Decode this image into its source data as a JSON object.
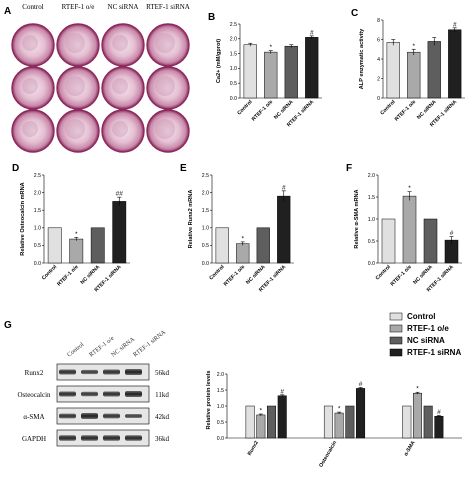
{
  "panel_a": {
    "letter": "A",
    "columns": [
      "Control",
      "RTEF-1 o/e",
      "NC siRNA",
      "RTEF-1 siRNA"
    ],
    "dish_rows": 3,
    "dish_color": "#8b2a5c"
  },
  "colors": {
    "Control": "#e0e0e0",
    "RTEF-1 o/e": "#a9a9a9",
    "NC siRNA": "#5e5e5e",
    "RTEF-1 siRNA": "#202020"
  },
  "chart_data": [
    {
      "panel": "B",
      "type": "bar",
      "categories": [
        "Control",
        "RTEF-1 o/e",
        "NC siRNA",
        "RTEF-1 siRNA"
      ],
      "values": [
        1.8,
        1.55,
        1.75,
        2.05
      ],
      "errors": [
        0.05,
        0.05,
        0.05,
        0.05
      ],
      "significance": [
        "",
        "*",
        "",
        "#"
      ],
      "ylabel": "Ca2+ (mM/gprot)",
      "ylim": [
        0,
        2.5
      ],
      "yticks": [
        "0.0",
        "0.5",
        "1.0",
        "1.5",
        "2.0",
        "2.5"
      ]
    },
    {
      "panel": "C",
      "type": "bar",
      "categories": [
        "Control",
        "RTEF-1 o/e",
        "NC siRNA",
        "RTEF-1 siRNA"
      ],
      "values": [
        5.7,
        4.7,
        5.8,
        7.0
      ],
      "errors": [
        0.3,
        0.3,
        0.4,
        0.2
      ],
      "significance": [
        "",
        "*",
        "",
        "#"
      ],
      "ylabel": "ALP enzymatic activity",
      "ylim": [
        0,
        8
      ],
      "yticks": [
        "0",
        "2",
        "4",
        "6",
        "8"
      ]
    },
    {
      "panel": "D",
      "type": "bar",
      "categories": [
        "Control",
        "RTEF-1 o/e",
        "NC siRNA",
        "RTEF-1 siRNA"
      ],
      "values": [
        1.0,
        0.68,
        1.0,
        1.75
      ],
      "errors": [
        0.0,
        0.05,
        0.0,
        0.12
      ],
      "significance": [
        "",
        "*",
        "",
        "##"
      ],
      "ylabel": "Relative Osteocalcin mRNA",
      "ylim": [
        0,
        2.5
      ],
      "yticks": [
        "0.0",
        "0.5",
        "1.0",
        "1.5",
        "2.0",
        "2.5"
      ]
    },
    {
      "panel": "E",
      "type": "bar",
      "categories": [
        "Control",
        "RTEF-1 o/e",
        "NC siRNA",
        "RTEF-1 siRNA"
      ],
      "values": [
        1.0,
        0.55,
        1.0,
        1.9
      ],
      "errors": [
        0.0,
        0.05,
        0.0,
        0.15
      ],
      "significance": [
        "",
        "*",
        "",
        "#"
      ],
      "ylabel": "Relative Runx2 mRNA",
      "ylim": [
        0,
        2.5
      ],
      "yticks": [
        "0.0",
        "0.5",
        "1.0",
        "1.5",
        "2.0",
        "2.5"
      ]
    },
    {
      "panel": "F",
      "type": "bar",
      "categories": [
        "Control",
        "RTEF-1 o/e",
        "NC siRNA",
        "RTEF-1 siRNA"
      ],
      "values": [
        1.0,
        1.52,
        1.0,
        0.52
      ],
      "errors": [
        0.0,
        0.1,
        0.0,
        0.08
      ],
      "significance": [
        "",
        "*",
        "",
        "#"
      ],
      "ylabel": "Relative α-SMA mRNA",
      "ylim": [
        0,
        2.0
      ],
      "yticks": [
        "0.0",
        "0.5",
        "1.0",
        "1.5",
        "2.0"
      ]
    },
    {
      "panel": "G",
      "type": "bar",
      "categories": [
        "Runx2",
        "Osteocalcin",
        "α-SMA"
      ],
      "series": [
        {
          "name": "Control",
          "values": [
            1.0,
            1.0,
            1.0
          ],
          "errors": [
            0.0,
            0.0,
            0.0
          ],
          "significance": [
            "",
            "",
            ""
          ]
        },
        {
          "name": "RTEF-1 o/e",
          "values": [
            0.72,
            0.78,
            1.4
          ],
          "errors": [
            0.03,
            0.03,
            0.03
          ],
          "significance": [
            "*",
            "*",
            "*"
          ]
        },
        {
          "name": "NC siRNA",
          "values": [
            1.0,
            1.0,
            1.0
          ],
          "errors": [
            0.0,
            0.0,
            0.0
          ],
          "significance": [
            "",
            "",
            ""
          ]
        },
        {
          "name": "RTEF-1 siRNA",
          "values": [
            1.32,
            1.55,
            0.68
          ],
          "errors": [
            0.03,
            0.03,
            0.03
          ],
          "significance": [
            "#",
            "#",
            "#"
          ]
        }
      ],
      "ylabel": "Relative protein  levels",
      "ylim": [
        0,
        2.0
      ],
      "yticks": [
        "0.0",
        "0.5",
        "1.0",
        "1.5",
        "2.0"
      ],
      "legend_placement": "top-right"
    }
  ],
  "panel_g": {
    "letter": "G",
    "blot_columns": [
      "Control",
      "RTEF-1 o/e",
      "NC siRNA",
      "RTEF-1 siRNA"
    ],
    "proteins": [
      "Runx2",
      "Osteocalcin",
      "α-SMA",
      "GAPDH"
    ],
    "sizes": [
      "56kd",
      "11kd",
      "42kd",
      "36kd"
    ]
  }
}
